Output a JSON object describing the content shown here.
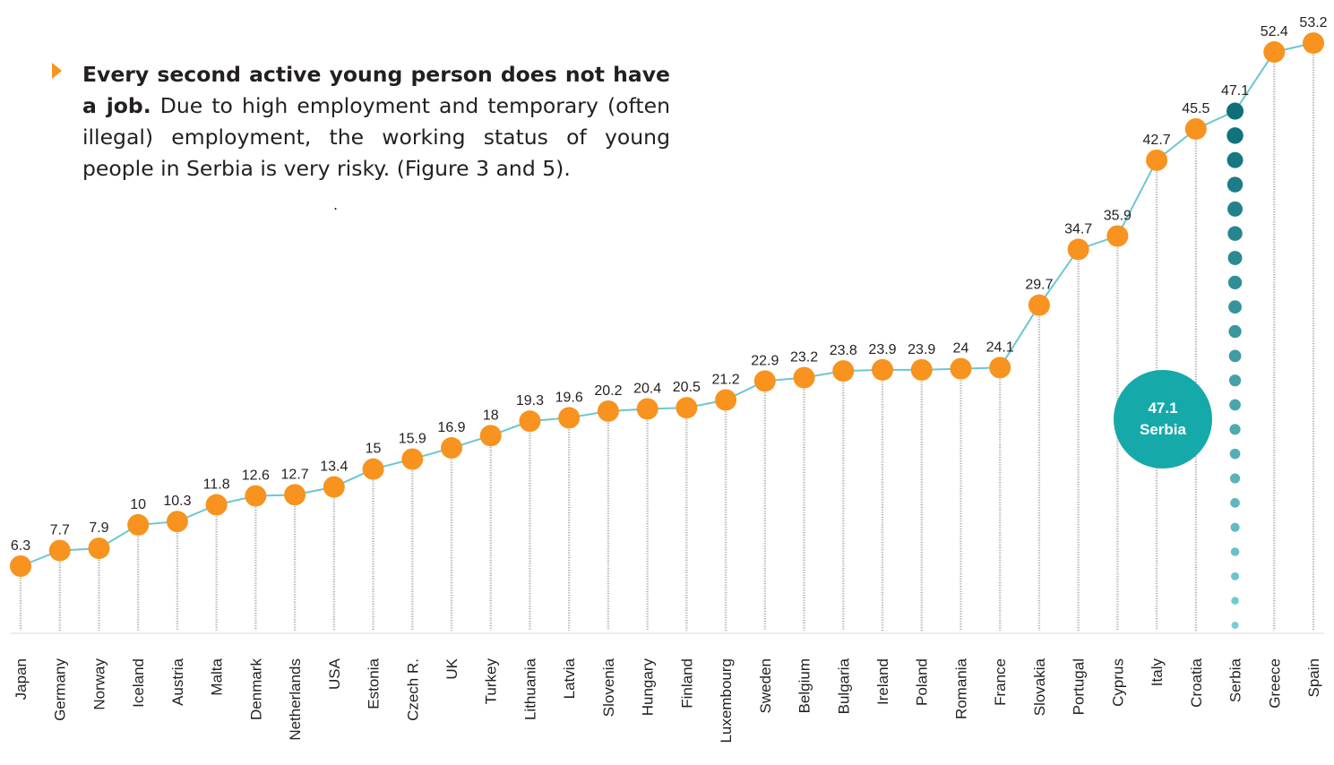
{
  "note": {
    "heading": "Every second active young person does not have a job.",
    "body": "Due to high employment and temporary (often illegal) employment, the working status of young people in Serbia is very risky.  (Figure 3 and 5)."
  },
  "stray_mark": ".",
  "colors": {
    "marker": "#f7931e",
    "line": "#6cc7d0",
    "highlight": "#16a9aa",
    "highlight_dark": "#0e6f78",
    "text": "#231f20"
  },
  "chart_data": {
    "type": "line",
    "categories": [
      "Japan",
      "Germany",
      "Norway",
      "Iceland",
      "Austria",
      "Malta",
      "Denmark",
      "Netherlands",
      "USA",
      "Estonia",
      "Czech R.",
      "UK",
      "Turkey",
      "Lithuania",
      "Latvia",
      "Slovenia",
      "Hungary",
      "Finland",
      "Luxembourg",
      "Sweden",
      "Belgium",
      "Bulgaria",
      "Ireland",
      "Poland",
      "Romania",
      "France",
      "Slovakia",
      "Portugal",
      "Cyprus",
      "Italy",
      "Croatia",
      "Serbia",
      "Greece",
      "Spain"
    ],
    "values": [
      6.3,
      7.7,
      7.9,
      10,
      10.3,
      11.8,
      12.6,
      12.7,
      13.4,
      15,
      15.9,
      16.9,
      18,
      19.3,
      19.6,
      20.2,
      20.4,
      20.5,
      21.2,
      22.9,
      23.2,
      23.8,
      23.9,
      23.9,
      24,
      24.1,
      29.7,
      34.7,
      35.9,
      42.7,
      45.5,
      47.1,
      52.4,
      53.2
    ],
    "highlight": {
      "category": "Serbia",
      "value": "47.1",
      "label": "Serbia"
    },
    "title": "",
    "xlabel": "",
    "ylabel": "",
    "grid": false,
    "legend": "none"
  }
}
